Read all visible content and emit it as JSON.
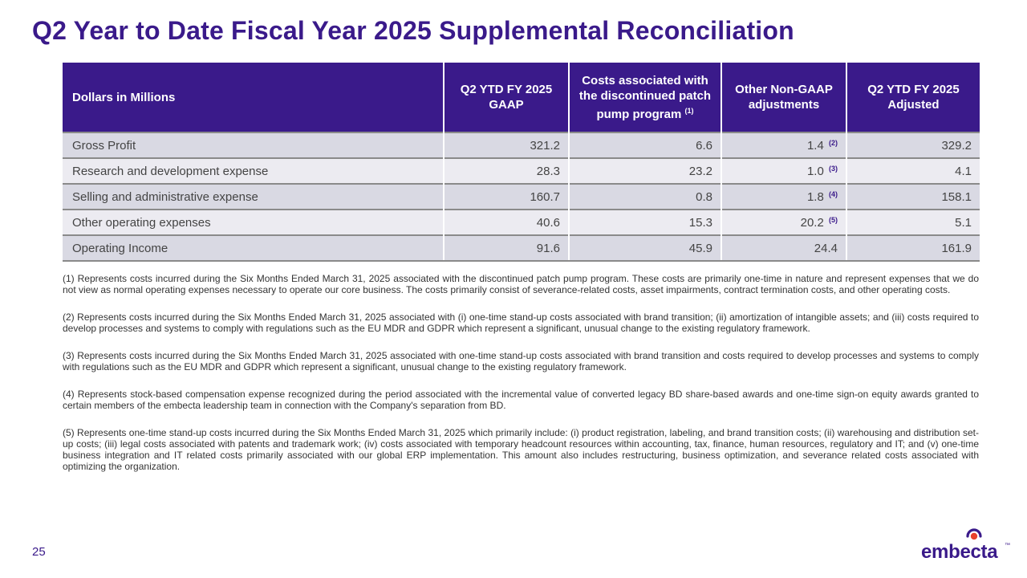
{
  "title": "Q2 Year to Date Fiscal Year 2025 Supplemental Reconciliation",
  "table": {
    "headers": {
      "col0": "Dollars in Millions",
      "col1": "Q2 YTD FY 2025 GAAP",
      "col2": "Costs associated with the discontinued patch pump program",
      "col2_ref": "(1)",
      "col3": "Other Non-GAAP adjustments",
      "col4": "Q2 YTD FY 2025 Adjusted"
    },
    "rows": [
      {
        "label": "Gross Profit",
        "gaap": "321.2",
        "patch_pump": "6.6",
        "other": "1.4",
        "other_ref": "(2)",
        "adjusted": "329.2"
      },
      {
        "label": "Research and development expense",
        "gaap": "28.3",
        "patch_pump": "23.2",
        "other": "1.0",
        "other_ref": "(3)",
        "adjusted": "4.1"
      },
      {
        "label": "Selling and administrative expense",
        "gaap": "160.7",
        "patch_pump": "0.8",
        "other": "1.8",
        "other_ref": "(4)",
        "adjusted": "158.1"
      },
      {
        "label": "Other operating expenses",
        "gaap": "40.6",
        "patch_pump": "15.3",
        "other": "20.2",
        "other_ref": "(5)",
        "adjusted": "5.1"
      },
      {
        "label": "Operating Income",
        "gaap": "91.6",
        "patch_pump": "45.9",
        "other": "24.4",
        "other_ref": "",
        "adjusted": "161.9"
      }
    ]
  },
  "footnotes": [
    "(1) Represents costs incurred during the Six Months Ended March 31, 2025 associated with the discontinued patch pump program. These costs are primarily one-time in nature and represent expenses that we do not view as normal operating expenses necessary to operate our core business. The costs primarily consist of severance-related costs, asset impairments, contract termination costs, and other operating costs.",
    "(2) Represents costs incurred during the Six Months Ended March 31, 2025 associated with (i) one-time stand-up costs associated with brand transition; (ii) amortization of intangible assets; and (iii) costs required to develop processes and systems to comply with regulations such as the EU MDR and GDPR which represent a significant, unusual change to the existing regulatory framework.",
    "(3) Represents costs incurred during the Six Months Ended March 31, 2025 associated with one-time stand-up costs associated with brand transition and costs required to develop processes and systems to comply with regulations such as the EU MDR and GDPR which represent a significant, unusual change to the existing regulatory framework.",
    "(4) Represents stock-based compensation expense recognized during the period associated with the incremental value of converted legacy BD share-based awards and one-time sign-on equity awards granted to certain members of the embecta leadership team in connection with the Company's separation from BD.",
    "(5) Represents one-time stand-up costs incurred during the Six Months Ended March 31, 2025 which primarily include: (i) product registration, labeling, and brand transition costs; (ii) warehousing and distribution set-up costs; (iii) legal costs associated with patents and trademark work; (iv) costs associated with temporary headcount resources within accounting, tax, finance, human resources, regulatory and IT; and (v) one-time business integration and IT related costs primarily associated with our global ERP implementation. This amount also includes restructuring, business optimization, and severance related costs associated with optimizing the organization."
  ],
  "page_number": "25",
  "logo": {
    "wordmark": "embecta",
    "trademark": "™"
  },
  "colors": {
    "brand_purple": "#3a1a8a",
    "row_dark": "#d9d9e3",
    "row_light": "#ecebf1",
    "logo_red": "#e8412c"
  }
}
